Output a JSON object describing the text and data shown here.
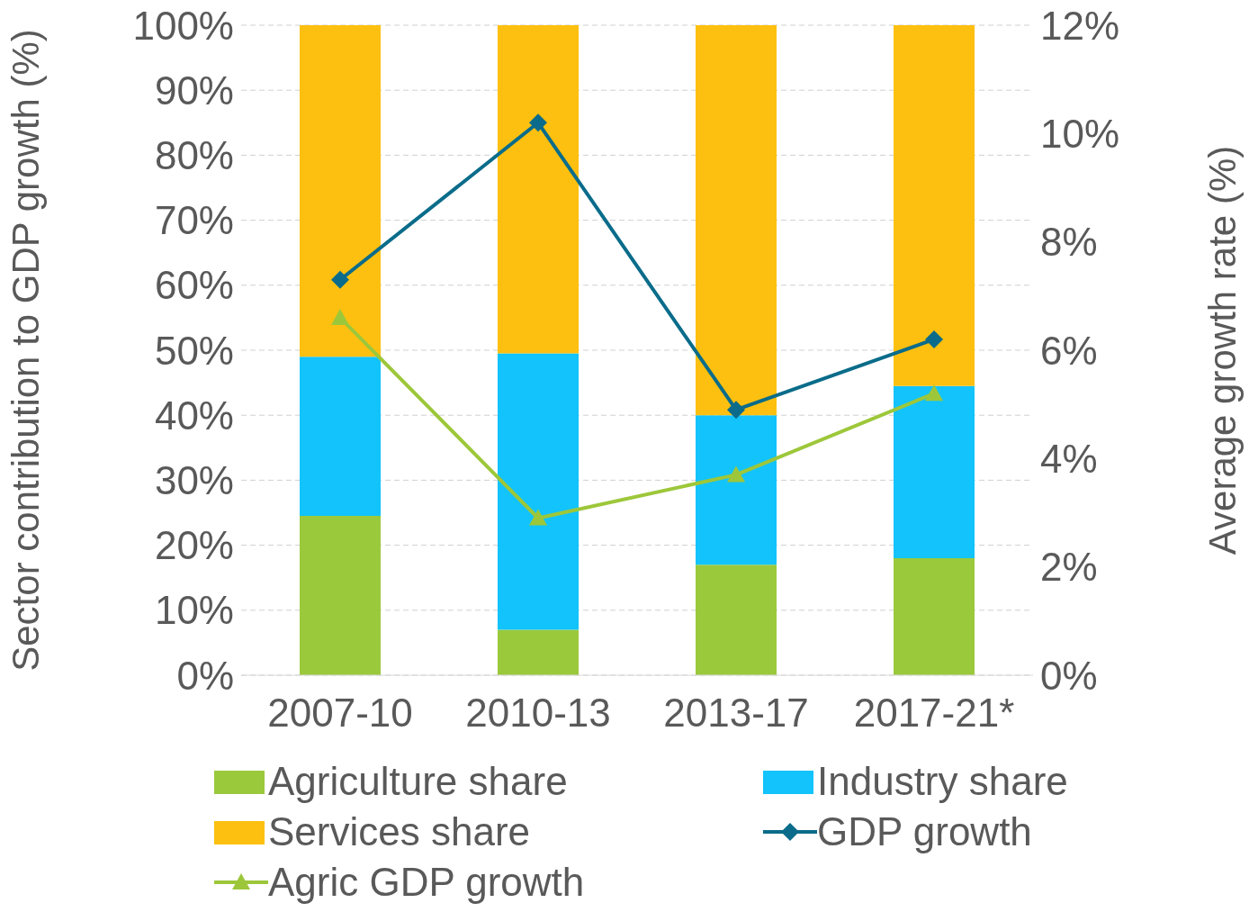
{
  "chart_data": {
    "type": "bar",
    "categories": [
      "2007-10",
      "2010-13",
      "2013-17",
      "2017-21*"
    ],
    "stacked": true,
    "ylabel": "Sector contribution to GDP growth (%)",
    "y2label": "Average growth rate (%)",
    "ylim": [
      0,
      100
    ],
    "yticks": [
      {
        "value": 0,
        "label": "0%"
      },
      {
        "value": 10,
        "label": "10%"
      },
      {
        "value": 20,
        "label": "20%"
      },
      {
        "value": 30,
        "label": "30%"
      },
      {
        "value": 40,
        "label": "40%"
      },
      {
        "value": 50,
        "label": "50%"
      },
      {
        "value": 60,
        "label": "60%"
      },
      {
        "value": 70,
        "label": "70%"
      },
      {
        "value": 80,
        "label": "80%"
      },
      {
        "value": 90,
        "label": "90%"
      },
      {
        "value": 100,
        "label": "100%"
      }
    ],
    "y2lim": [
      0,
      12
    ],
    "y2ticks": [
      {
        "value": 0,
        "label": "0%"
      },
      {
        "value": 2,
        "label": "2%"
      },
      {
        "value": 4,
        "label": "4%"
      },
      {
        "value": 6,
        "label": "6%"
      },
      {
        "value": 8,
        "label": "8%"
      },
      {
        "value": 10,
        "label": "10%"
      },
      {
        "value": 12,
        "label": "12%"
      }
    ],
    "grid": "y",
    "legend": "bottom",
    "series": [
      {
        "name": "Agriculture share",
        "color": "#9bc93c",
        "values": [
          24.5,
          7,
          17,
          18
        ]
      },
      {
        "name": "Industry share",
        "color": "#13c3fb",
        "values": [
          24.5,
          42.5,
          23,
          26.5
        ]
      },
      {
        "name": "Services share",
        "color": "#fdc010",
        "values": [
          51,
          50.5,
          60,
          55.5
        ]
      },
      {
        "name": "GDP growth",
        "type": "line",
        "axis": "y2",
        "marker": "diamond",
        "color": "#0a6c8a",
        "values": [
          7.3,
          10.2,
          4.9,
          6.2
        ]
      },
      {
        "name": "Agric GDP growth",
        "type": "line",
        "axis": "y2",
        "marker": "triangle",
        "color": "#9dc73a",
        "values": [
          6.6,
          2.9,
          3.7,
          5.2
        ]
      }
    ]
  }
}
